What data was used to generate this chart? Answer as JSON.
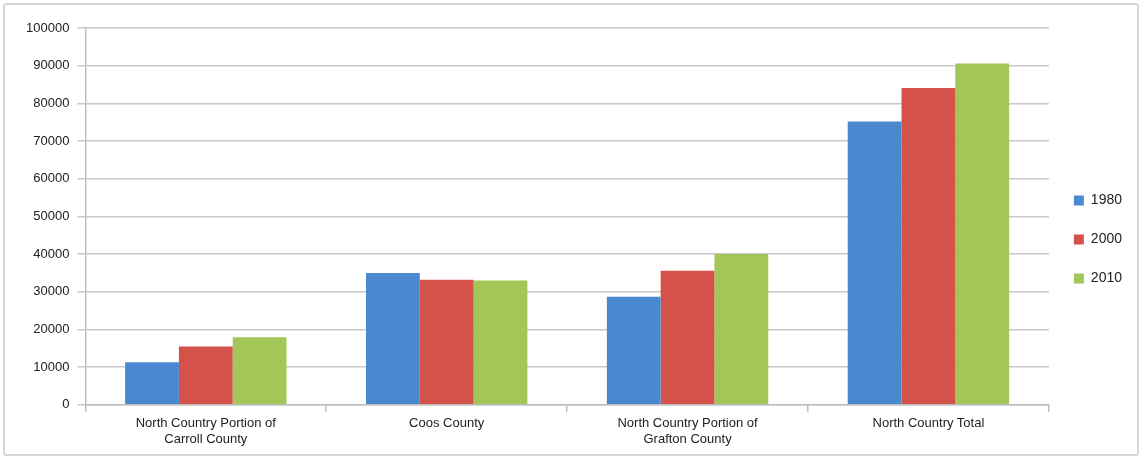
{
  "chart_data": {
    "type": "bar",
    "categories": [
      "North Country Portion of Carroll County",
      "Coos County",
      "North Country Portion of Grafton County",
      "North Country Total"
    ],
    "series": [
      {
        "name": "1980",
        "color": "#4a88cf",
        "values": [
          11300,
          35000,
          28700,
          75200
        ]
      },
      {
        "name": "2000",
        "color": "#d4524a",
        "values": [
          15500,
          33200,
          35600,
          84100
        ]
      },
      {
        "name": "2010",
        "color": "#a3c659",
        "values": [
          17900,
          33000,
          40000,
          90600
        ]
      }
    ],
    "ylim": [
      0,
      100000
    ],
    "yticks": [
      0,
      10000,
      20000,
      30000,
      40000,
      50000,
      60000,
      70000,
      80000,
      90000,
      100000
    ],
    "grid": "y",
    "legend": "right"
  }
}
